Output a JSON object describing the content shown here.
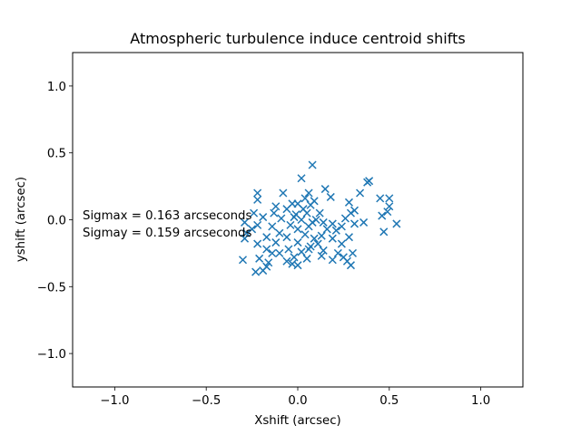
{
  "chart_data": {
    "type": "scatter",
    "title": "Atmospheric turbulence induce centroid shifts",
    "xlabel": "Xshift (arcsec)",
    "ylabel": "yshift (arcsec)",
    "xlim": [
      -1.23,
      1.23
    ],
    "ylim": [
      -1.25,
      1.25
    ],
    "xticks": [
      -1.0,
      -0.5,
      0.0,
      0.5,
      1.0
    ],
    "xtick_labels": [
      "−1.0",
      "−0.5",
      "0.0",
      "0.5",
      "1.0"
    ],
    "yticks": [
      -1.0,
      -0.5,
      0.0,
      0.5,
      1.0
    ],
    "ytick_labels": [
      "−1.0",
      "−0.5",
      "0.0",
      "0.5",
      "1.0"
    ],
    "grid": false,
    "marker": "x",
    "color": "#1f77b4",
    "annotations": [
      "Sigmax = 0.163 arcseconds",
      "Sigmay = 0.159 arcseconds"
    ],
    "points": [
      [
        0.08,
        0.41
      ],
      [
        0.02,
        0.31
      ],
      [
        0.39,
        0.29
      ],
      [
        0.38,
        0.28
      ],
      [
        0.15,
        0.23
      ],
      [
        -0.22,
        0.2
      ],
      [
        -0.08,
        0.2
      ],
      [
        0.06,
        0.2
      ],
      [
        0.34,
        0.2
      ],
      [
        0.18,
        0.17
      ],
      [
        0.45,
        0.16
      ],
      [
        0.5,
        0.16
      ],
      [
        -0.22,
        0.15
      ],
      [
        0.04,
        0.16
      ],
      [
        0.09,
        0.14
      ],
      [
        -0.03,
        0.12
      ],
      [
        0.0,
        0.12
      ],
      [
        0.28,
        0.13
      ],
      [
        0.5,
        0.1
      ],
      [
        0.07,
        0.11
      ],
      [
        -0.06,
        0.08
      ],
      [
        0.03,
        0.08
      ],
      [
        0.31,
        0.07
      ],
      [
        0.49,
        0.06
      ],
      [
        0.29,
        0.05
      ],
      [
        -0.13,
        0.05
      ],
      [
        -0.24,
        0.05
      ],
      [
        -0.01,
        0.04
      ],
      [
        0.05,
        0.05
      ],
      [
        0.12,
        0.05
      ],
      [
        0.46,
        0.03
      ],
      [
        -0.19,
        0.02
      ],
      [
        -0.09,
        0.01
      ],
      [
        0.02,
        0.0
      ],
      [
        0.1,
        0.0
      ],
      [
        0.26,
        0.01
      ],
      [
        0.36,
        -0.02
      ],
      [
        0.54,
        -0.03
      ],
      [
        -0.29,
        -0.02
      ],
      [
        -0.22,
        -0.04
      ],
      [
        0.14,
        -0.02
      ],
      [
        0.19,
        -0.03
      ],
      [
        0.24,
        -0.05
      ],
      [
        -0.14,
        -0.05
      ],
      [
        -0.04,
        -0.04
      ],
      [
        0.06,
        -0.05
      ],
      [
        0.31,
        -0.03
      ],
      [
        -0.25,
        -0.07
      ],
      [
        0.0,
        -0.07
      ],
      [
        0.16,
        -0.07
      ],
      [
        0.21,
        -0.08
      ],
      [
        0.47,
        -0.09
      ],
      [
        -0.28,
        -0.1
      ],
      [
        -0.1,
        -0.1
      ],
      [
        0.04,
        -0.11
      ],
      [
        0.13,
        -0.12
      ],
      [
        -0.29,
        -0.14
      ],
      [
        -0.17,
        -0.13
      ],
      [
        -0.06,
        -0.13
      ],
      [
        0.09,
        -0.14
      ],
      [
        0.19,
        -0.14
      ],
      [
        0.28,
        -0.13
      ],
      [
        -0.12,
        -0.17
      ],
      [
        0.0,
        -0.17
      ],
      [
        0.24,
        -0.18
      ],
      [
        -0.22,
        -0.18
      ],
      [
        -0.17,
        -0.22
      ],
      [
        -0.05,
        -0.22
      ],
      [
        0.06,
        -0.22
      ],
      [
        0.14,
        -0.23
      ],
      [
        0.02,
        -0.24
      ],
      [
        -0.14,
        -0.25
      ],
      [
        0.22,
        -0.25
      ],
      [
        0.3,
        -0.25
      ],
      [
        -0.1,
        -0.25
      ],
      [
        0.13,
        -0.27
      ],
      [
        0.25,
        -0.28
      ],
      [
        -0.02,
        -0.28
      ],
      [
        0.05,
        -0.29
      ],
      [
        -0.3,
        -0.3
      ],
      [
        -0.21,
        -0.29
      ],
      [
        0.19,
        -0.3
      ],
      [
        0.27,
        -0.31
      ],
      [
        -0.06,
        -0.31
      ],
      [
        -0.16,
        -0.32
      ],
      [
        0.29,
        -0.34
      ],
      [
        -0.03,
        -0.33
      ],
      [
        0.0,
        -0.34
      ],
      [
        -0.17,
        -0.35
      ],
      [
        -0.23,
        -0.39
      ],
      [
        -0.19,
        -0.38
      ],
      [
        0.07,
        -0.2
      ],
      [
        0.11,
        -0.18
      ],
      [
        -0.02,
        0.02
      ],
      [
        0.08,
        -0.02
      ],
      [
        -0.12,
        0.1
      ]
    ]
  }
}
